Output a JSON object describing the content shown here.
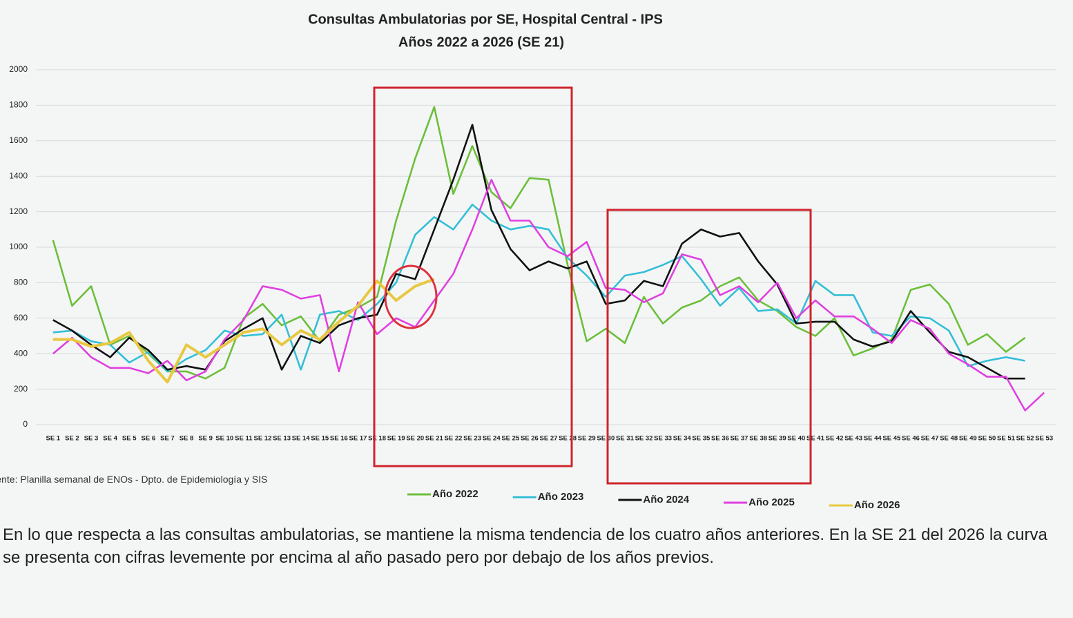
{
  "chart_data": {
    "type": "line",
    "title": "Consultas Ambulatorias por SE, Hospital Central - IPS",
    "subtitle": "Años 2022 a 2026 (SE 21)",
    "source": "Fuente: Planilla semanal de ENOs - Dpto. de Epidemiología y SIS",
    "categories": [
      "SE 1",
      "SE 2",
      "SE 3",
      "SE 4",
      "SE 5",
      "SE 6",
      "SE 7",
      "SE 8",
      "SE 9",
      "SE 10",
      "SE 11",
      "SE 12",
      "SE 13",
      "SE 14",
      "SE 15",
      "SE 16",
      "SE 17",
      "SE 18",
      "SE 19",
      "SE 20",
      "SE 21",
      "SE 22",
      "SE 23",
      "SE 24",
      "SE 25",
      "SE 26",
      "SE 27",
      "SE 28",
      "SE 29",
      "SE 30",
      "SE 31",
      "SE 32",
      "SE 33",
      "SE 34",
      "SE 35",
      "SE 36",
      "SE 37",
      "SE 38",
      "SE 39",
      "SE 40",
      "SE 41",
      "SE 42",
      "SE 43",
      "SE 44",
      "SE 45",
      "SE 46",
      "SE 47",
      "SE 48",
      "SE 49",
      "SE 50",
      "SE 51",
      "SE 52",
      "SE 53"
    ],
    "ylim": [
      0,
      2000
    ],
    "yticks": [
      0,
      200,
      400,
      600,
      800,
      1000,
      1200,
      1400,
      1600,
      1800,
      2000
    ],
    "grid": true,
    "series": [
      {
        "name": "Año 2022",
        "color": "#6cbf3a",
        "values": [
          1040,
          670,
          780,
          450,
          500,
          400,
          300,
          300,
          260,
          320,
          600,
          680,
          560,
          610,
          470,
          620,
          660,
          720,
          1150,
          1500,
          1790,
          1300,
          1570,
          1310,
          1220,
          1390,
          1380,
          900,
          470,
          540,
          460,
          720,
          570,
          660,
          700,
          780,
          830,
          700,
          640,
          550,
          500,
          600,
          390,
          430,
          480,
          760,
          790,
          680,
          450,
          510,
          410,
          490,
          null
        ]
      },
      {
        "name": "Año 2023",
        "color": "#33bfd6",
        "values": [
          520,
          530,
          470,
          450,
          350,
          410,
          300,
          370,
          420,
          530,
          500,
          510,
          620,
          310,
          620,
          640,
          590,
          680,
          800,
          1070,
          1170,
          1100,
          1240,
          1150,
          1100,
          1120,
          1100,
          940,
          840,
          720,
          840,
          860,
          900,
          950,
          820,
          670,
          770,
          640,
          650,
          570,
          810,
          730,
          730,
          520,
          500,
          610,
          600,
          530,
          330,
          360,
          380,
          360,
          null
        ]
      },
      {
        "name": "Año 2024",
        "color": "#111111",
        "values": [
          590,
          530,
          450,
          380,
          490,
          420,
          310,
          330,
          310,
          470,
          540,
          600,
          310,
          500,
          460,
          560,
          600,
          620,
          850,
          820,
          1100,
          1380,
          1690,
          1210,
          990,
          870,
          920,
          880,
          920,
          680,
          700,
          810,
          780,
          1020,
          1100,
          1060,
          1080,
          920,
          790,
          570,
          580,
          580,
          480,
          440,
          470,
          640,
          520,
          410,
          380,
          320,
          260,
          260,
          null
        ]
      },
      {
        "name": "Año 2025",
        "color": "#e040e0",
        "values": [
          400,
          490,
          380,
          320,
          320,
          290,
          360,
          250,
          300,
          480,
          590,
          780,
          760,
          710,
          730,
          300,
          690,
          510,
          600,
          550,
          700,
          850,
          1100,
          1380,
          1150,
          1150,
          1000,
          950,
          1030,
          770,
          760,
          690,
          740,
          960,
          930,
          730,
          780,
          690,
          800,
          600,
          700,
          610,
          610,
          540,
          460,
          590,
          540,
          400,
          340,
          270,
          270,
          80,
          180
        ]
      },
      {
        "name": "Año 2026",
        "color": "#e8c840",
        "values": [
          480,
          480,
          440,
          460,
          520,
          360,
          240,
          450,
          380,
          450,
          520,
          540,
          450,
          530,
          480,
          580,
          670,
          810,
          700,
          780,
          820,
          null,
          null,
          null,
          null,
          null,
          null,
          null,
          null,
          null,
          null,
          null,
          null,
          null,
          null,
          null,
          null,
          null,
          null,
          null,
          null,
          null,
          null,
          null,
          null,
          null,
          null,
          null,
          null,
          null,
          null,
          null,
          null
        ]
      }
    ],
    "note": "En lo que respecta a las consultas ambulatorias, se mantiene la misma tendencia de los cuatro años anteriores. En la SE 21 del 2026 la curva se presenta con cifras levemente por encima al año pasado pero por debajo de los años previos."
  }
}
